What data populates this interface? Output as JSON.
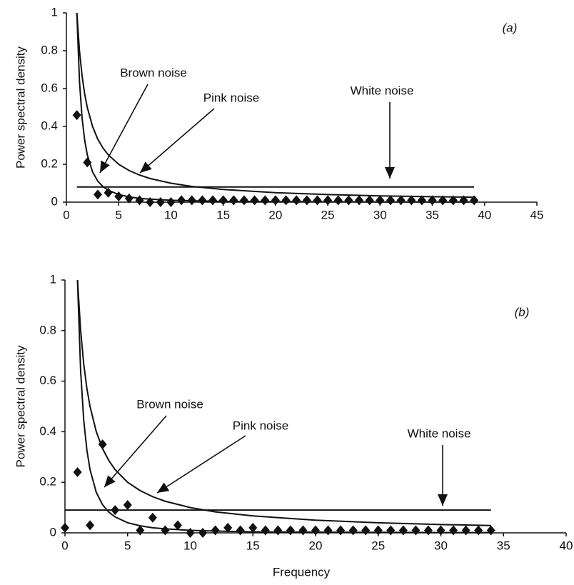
{
  "chart_data": [
    {
      "type": "line",
      "panel_label": "(a)",
      "y_label": "Power spectral density",
      "xlim": [
        0,
        45
      ],
      "xticks": [
        0,
        5,
        10,
        15,
        20,
        25,
        30,
        35,
        40,
        45
      ],
      "ylim": [
        0,
        1
      ],
      "yticks": [
        0,
        0.2,
        0.4,
        0.6,
        0.8,
        1
      ],
      "annotations": [
        "Brown noise",
        "Pink noise",
        "White noise"
      ],
      "series": [
        {
          "mode": "markers",
          "color": "#111",
          "x": [
            1,
            2,
            3,
            4,
            5,
            6,
            7,
            8,
            9,
            10,
            11,
            12,
            13,
            14,
            15,
            16,
            17,
            18,
            19,
            20,
            21,
            22,
            23,
            24,
            25,
            26,
            27,
            28,
            29,
            30,
            31,
            32,
            33,
            34,
            35,
            36,
            37,
            38,
            39
          ],
          "values": [
            0.46,
            0.21,
            0.04,
            0.05,
            0.03,
            0.02,
            0.01,
            0,
            0,
            0,
            0.01,
            0.01,
            0.01,
            0.01,
            0.01,
            0.01,
            0.01,
            0.01,
            0.01,
            0.01,
            0.01,
            0.01,
            0.01,
            0.01,
            0.01,
            0.01,
            0.01,
            0.01,
            0.01,
            0.01,
            0.01,
            0.01,
            0.01,
            0.01,
            0.01,
            0.01,
            0.01,
            0.01,
            0.01
          ]
        },
        {
          "mode": "lines",
          "color": "#111",
          "x": [
            1,
            1.25,
            1.5,
            1.75,
            2,
            2.5,
            3,
            3.5,
            4,
            5,
            6,
            7,
            8,
            10,
            12,
            15,
            20,
            25,
            30,
            35,
            39
          ],
          "values": [
            1,
            0.8,
            0.667,
            0.571,
            0.5,
            0.4,
            0.333,
            0.286,
            0.25,
            0.2,
            0.167,
            0.143,
            0.125,
            0.1,
            0.083,
            0.067,
            0.05,
            0.04,
            0.033,
            0.029,
            0.026
          ]
        },
        {
          "mode": "lines",
          "color": "#111",
          "x": [
            1,
            1.25,
            1.5,
            1.75,
            2,
            2.5,
            3,
            3.5,
            4,
            5,
            6,
            7,
            8,
            10,
            12,
            15,
            20,
            25,
            30,
            35,
            39
          ],
          "values": [
            1,
            0.64,
            0.444,
            0.327,
            0.25,
            0.16,
            0.111,
            0.082,
            0.063,
            0.04,
            0.028,
            0.02,
            0.016,
            0.01,
            0.007,
            0.004,
            0.003,
            0.002,
            0.001,
            0.001,
            0.001
          ]
        },
        {
          "mode": "lines",
          "color": "#111",
          "x": [
            1,
            39
          ],
          "values": [
            0.08,
            0.08
          ]
        }
      ]
    },
    {
      "type": "line",
      "panel_label": "(b)",
      "y_label": "Power spectral density",
      "x_label": "Frequency",
      "xlim": [
        0,
        40
      ],
      "xticks": [
        0,
        5,
        10,
        15,
        20,
        25,
        30,
        35,
        40
      ],
      "ylim": [
        0,
        1
      ],
      "yticks": [
        0,
        0.2,
        0.4,
        0.6,
        0.8,
        1
      ],
      "annotations": [
        "Brown noise",
        "Pink noise",
        "White noise"
      ],
      "series": [
        {
          "mode": "markers",
          "color": "#111",
          "x": [
            0,
            1,
            2,
            3,
            4,
            5,
            6,
            7,
            8,
            9,
            10,
            11,
            12,
            13,
            14,
            15,
            16,
            17,
            18,
            19,
            20,
            21,
            22,
            23,
            24,
            25,
            26,
            27,
            28,
            29,
            30,
            31,
            32,
            33,
            34
          ],
          "values": [
            0.02,
            0.24,
            0.03,
            0.35,
            0.09,
            0.11,
            0.01,
            0.06,
            0.01,
            0.03,
            0,
            0,
            0.01,
            0.02,
            0.01,
            0.02,
            0.01,
            0.01,
            0.01,
            0.01,
            0.01,
            0.01,
            0.01,
            0.01,
            0.01,
            0.01,
            0.01,
            0.01,
            0.01,
            0.01,
            0.01,
            0.01,
            0.01,
            0.01,
            0.01
          ]
        },
        {
          "mode": "lines",
          "color": "#111",
          "x": [
            1,
            1.25,
            1.5,
            1.75,
            2,
            2.5,
            3,
            3.5,
            4,
            5,
            6,
            7,
            8,
            10,
            12,
            15,
            20,
            25,
            30,
            34
          ],
          "values": [
            1,
            0.8,
            0.667,
            0.571,
            0.5,
            0.4,
            0.333,
            0.286,
            0.25,
            0.2,
            0.167,
            0.143,
            0.125,
            0.1,
            0.083,
            0.067,
            0.05,
            0.04,
            0.033,
            0.029
          ]
        },
        {
          "mode": "lines",
          "color": "#111",
          "x": [
            1,
            1.25,
            1.5,
            1.75,
            2,
            2.5,
            3,
            3.5,
            4,
            5,
            6,
            7,
            8,
            10,
            12,
            15,
            20,
            25,
            30,
            34
          ],
          "values": [
            1,
            0.64,
            0.444,
            0.327,
            0.25,
            0.16,
            0.111,
            0.082,
            0.063,
            0.04,
            0.028,
            0.02,
            0.016,
            0.01,
            0.007,
            0.004,
            0.003,
            0.002,
            0.001,
            0.001
          ]
        },
        {
          "mode": "lines",
          "color": "#111",
          "x": [
            0,
            34
          ],
          "values": [
            0.09,
            0.09
          ]
        }
      ]
    }
  ]
}
